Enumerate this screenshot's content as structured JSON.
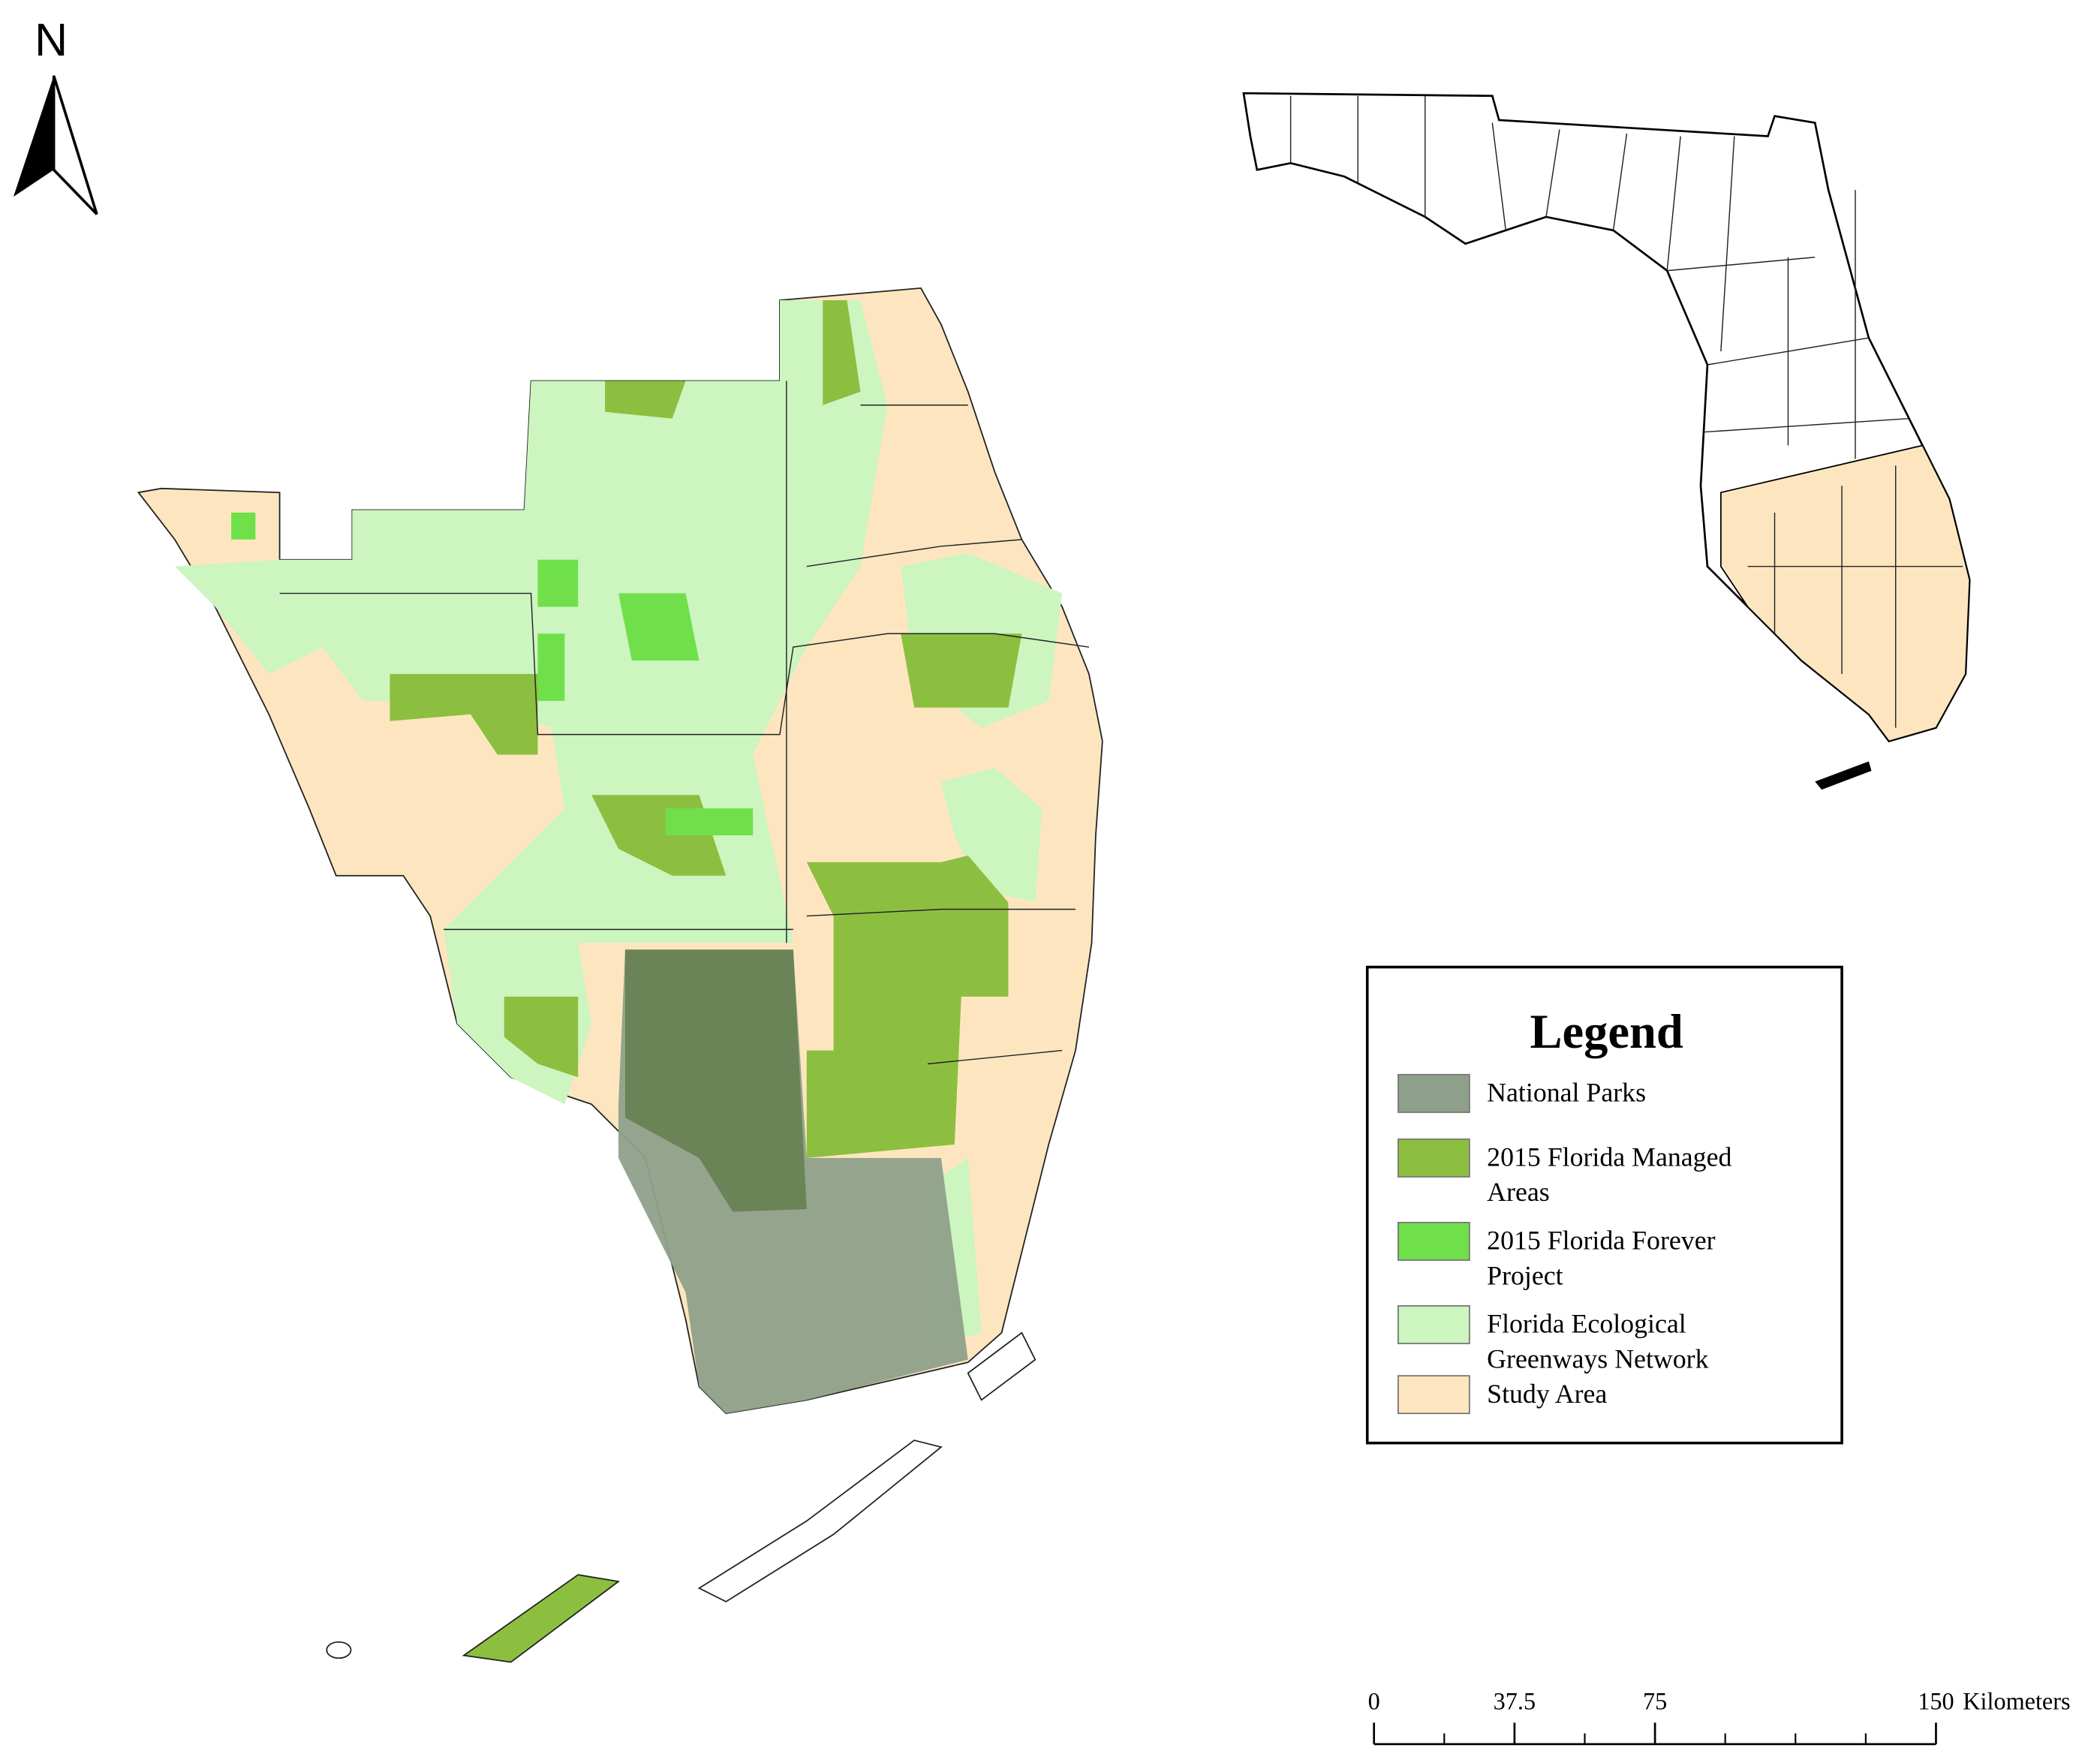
{
  "north_arrow": {
    "label": "N"
  },
  "legend": {
    "title": "Legend",
    "items": [
      {
        "lines": [
          "National Parks"
        ],
        "color": "#8fa08a"
      },
      {
        "lines": [
          "2015 Florida Managed",
          "Areas"
        ],
        "color": "#8cbf3f"
      },
      {
        "lines": [
          "2015 Florida Forever",
          "Project"
        ],
        "color": "#6fe04a"
      },
      {
        "lines": [
          "Florida Ecological",
          "Greenways Network"
        ],
        "color": "#ccf5c0"
      },
      {
        "lines": [
          "Study Area"
        ],
        "color": "#fde6bf"
      }
    ]
  },
  "scale_bar": {
    "ticks": [
      0,
      37.5,
      75,
      150
    ],
    "unit": "Kilometers"
  }
}
